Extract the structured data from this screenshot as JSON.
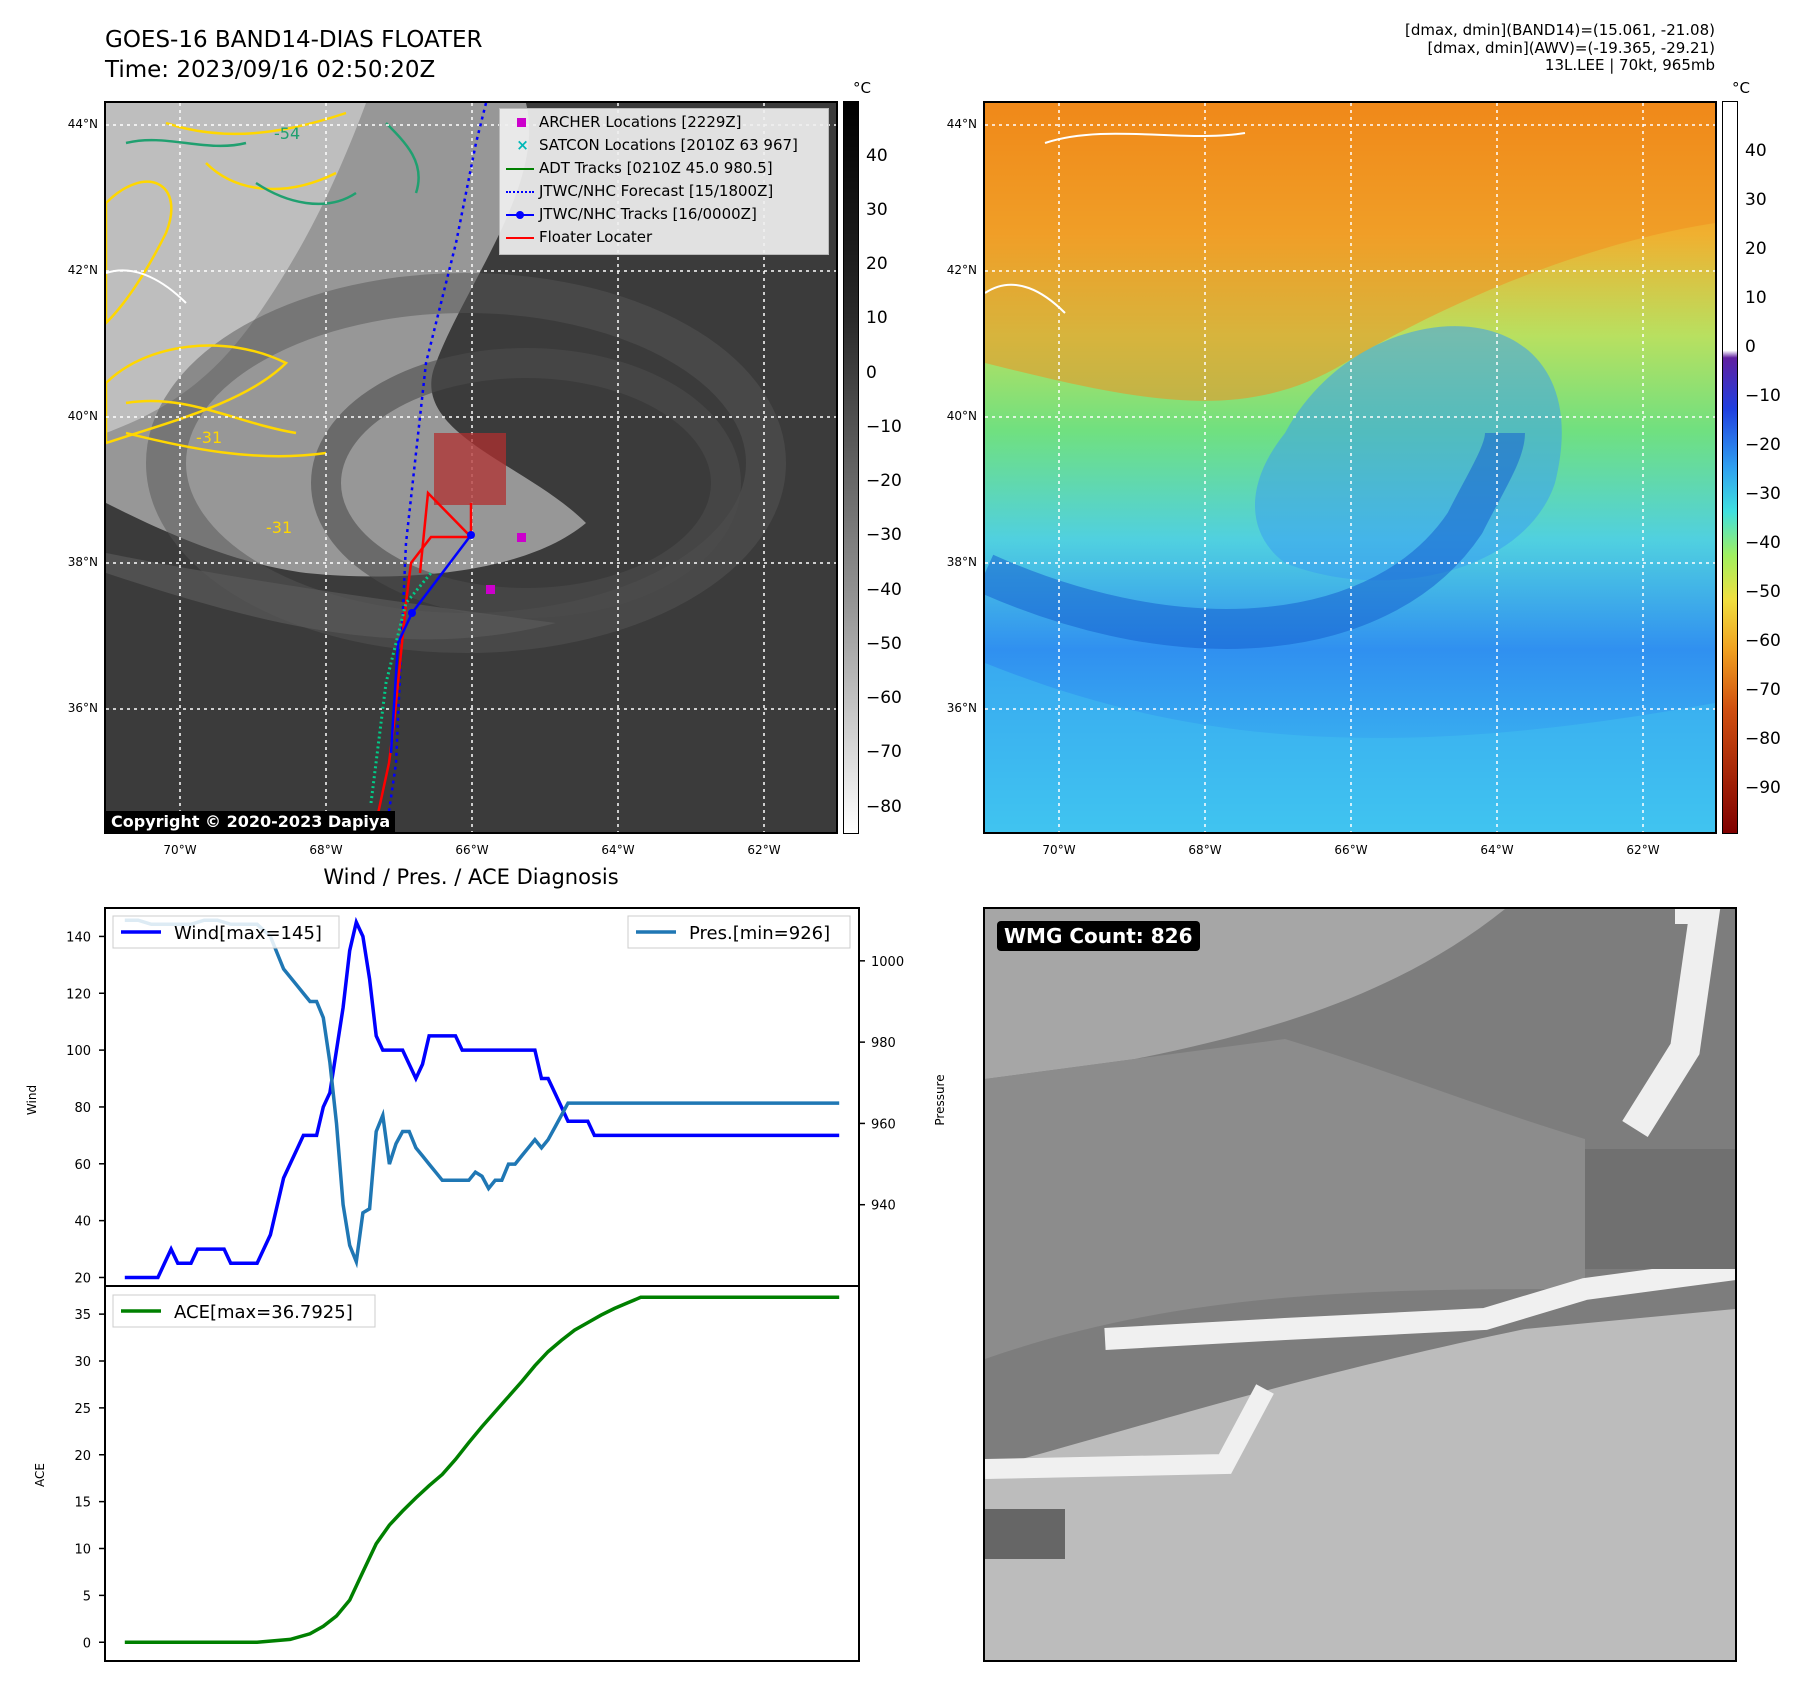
{
  "header": {
    "title_line1": "GOES-16 BAND14-DIAS FLOATER",
    "title_line2": "Time: 2023/09/16 02:50:20Z",
    "info_line1": "[dmax, dmin](BAND14)=(15.061, -21.08)",
    "info_line2": "[dmax, dmin](AWV)=(-19.365, -29.21)",
    "info_line3": "13L.LEE | 70kt, 965mb"
  },
  "map_axes": {
    "lat_labels": [
      "44°N",
      "42°N",
      "40°N",
      "38°N",
      "36°N"
    ],
    "lon_labels": [
      "70°W",
      "68°W",
      "66°W",
      "64°W",
      "62°W"
    ]
  },
  "ir_panel": {
    "colorbar_unit": "°C",
    "colorbar_ticks": [
      "40",
      "30",
      "20",
      "10",
      "0",
      "−10",
      "−20",
      "−30",
      "−40",
      "−50",
      "−60",
      "−70",
      "−80"
    ],
    "copyright": "Copyright © 2020-2023 Dapiya",
    "legend": {
      "archer": "ARCHER Locations [2229Z]",
      "satcon": "SATCON Locations [2010Z 63 967]",
      "adt": "ADT Tracks [0210Z 45.0 980.5]",
      "forecast": "JTWC/NHC Forecast [15/1800Z]",
      "tracks": "JTWC/NHC Tracks [16/0000Z]",
      "floater": "Floater Locater"
    },
    "contour_labels": [
      "-54",
      "-31",
      "-31"
    ]
  },
  "wv_panel": {
    "colorbar_unit": "°C",
    "colorbar_ticks": [
      "40",
      "30",
      "20",
      "10",
      "0",
      "−10",
      "−20",
      "−30",
      "−40",
      "−50",
      "−60",
      "−70",
      "−80",
      "−90"
    ]
  },
  "wmg_panel": {
    "label": "WMG Count: 826"
  },
  "colors": {
    "wind": "#0000ff",
    "pressure": "#1f77b4",
    "ace": "#008000",
    "tracks": "#0000ff",
    "floater": "#ff0000",
    "archer": "#cc00cc",
    "satcon": "#00b8b8"
  },
  "chart_data": [
    {
      "type": "line",
      "title": "Wind / Pres. / ACE Diagnosis",
      "ylabel": "Wind",
      "y2label": "Pressure",
      "ylim": [
        17,
        150
      ],
      "y2lim": [
        920,
        1013
      ],
      "y_ticks": [
        "140",
        "120",
        "100",
        "80",
        "60",
        "40",
        "20"
      ],
      "y2_ticks": [
        "1000",
        "980",
        "960",
        "940"
      ],
      "series": [
        {
          "name": "Wind[max=145]",
          "axis": "left",
          "x": [
            0,
            1,
            2,
            3,
            4,
            5,
            6,
            7,
            8,
            9,
            10,
            11,
            12,
            13,
            14,
            15,
            16,
            17,
            18,
            19,
            20,
            21,
            22,
            23,
            24,
            25,
            26,
            27,
            28,
            29,
            30,
            31,
            32,
            33,
            34,
            35,
            36,
            37,
            38,
            39,
            40,
            41,
            42,
            43,
            44,
            45,
            46,
            47,
            48,
            49,
            50,
            51,
            52,
            53,
            54,
            55,
            56,
            57,
            58,
            59,
            60,
            61,
            62,
            63,
            64,
            65,
            66,
            67,
            68,
            69,
            70,
            71,
            72,
            73,
            74,
            75,
            76,
            77,
            78,
            79,
            80,
            81,
            82,
            83,
            84,
            85,
            86,
            87,
            88,
            89,
            90,
            91,
            92,
            93,
            94,
            95,
            96,
            97,
            98,
            99,
            100,
            101,
            102,
            103,
            104,
            105,
            106,
            107,
            108
          ],
          "values": [
            20,
            20,
            20,
            20,
            20,
            20,
            25,
            30,
            25,
            25,
            25,
            30,
            30,
            30,
            30,
            30,
            25,
            25,
            25,
            25,
            25,
            30,
            35,
            45,
            55,
            60,
            65,
            70,
            70,
            70,
            80,
            85,
            100,
            115,
            135,
            145,
            140,
            125,
            105,
            100,
            100,
            100,
            100,
            95,
            90,
            95,
            105,
            105,
            105,
            105,
            105,
            100,
            100,
            100,
            100,
            100,
            100,
            100,
            100,
            100,
            100,
            100,
            100,
            90,
            90,
            85,
            80,
            75,
            75,
            75,
            75,
            70,
            70,
            70,
            70,
            70,
            70,
            70,
            70,
            70,
            70,
            70,
            70,
            70,
            70,
            70,
            70,
            70,
            70,
            70,
            70,
            70,
            70,
            70,
            70,
            70,
            70,
            70,
            70,
            70,
            70,
            70,
            70,
            70,
            70,
            70,
            70,
            70,
            70
          ]
        },
        {
          "name": "Pres.[min=926]",
          "axis": "right",
          "x": [
            0,
            2,
            4,
            6,
            8,
            10,
            12,
            14,
            16,
            18,
            20,
            22,
            24,
            26,
            27,
            28,
            29,
            30,
            31,
            32,
            33,
            34,
            35,
            36,
            37,
            38,
            39,
            40,
            41,
            42,
            43,
            44,
            45,
            46,
            47,
            48,
            49,
            50,
            51,
            52,
            53,
            54,
            55,
            56,
            57,
            58,
            59,
            60,
            61,
            62,
            63,
            64,
            65,
            66,
            67,
            68,
            69,
            70,
            71,
            72,
            73,
            74,
            75,
            76,
            77,
            78,
            79,
            80,
            81,
            82,
            83,
            84,
            85,
            86,
            87,
            88,
            89,
            90,
            91,
            92,
            93,
            94,
            95,
            96,
            97,
            98,
            99,
            100,
            101,
            102,
            103,
            104,
            105,
            106,
            107,
            108
          ],
          "values": [
            1010,
            1010,
            1009,
            1009,
            1009,
            1009,
            1010,
            1010,
            1009,
            1009,
            1009,
            1006,
            998,
            994,
            992,
            990,
            990,
            986,
            975,
            960,
            940,
            930,
            926,
            938,
            939,
            958,
            962,
            950,
            955,
            958,
            958,
            954,
            952,
            950,
            948,
            946,
            946,
            946,
            946,
            946,
            948,
            947,
            944,
            946,
            946,
            950,
            950,
            952,
            954,
            956,
            954,
            956,
            959,
            962,
            965,
            965,
            965,
            965,
            965,
            965,
            965,
            965,
            965,
            965,
            965,
            965,
            965,
            965,
            965,
            965,
            965,
            965,
            965,
            965,
            965,
            965,
            965,
            965,
            965,
            965,
            965,
            965,
            965,
            965,
            965,
            965,
            965,
            965,
            965,
            965,
            965,
            965,
            965,
            965,
            965,
            965
          ]
        }
      ]
    },
    {
      "type": "line",
      "ylabel": "ACE",
      "ylim": [
        -2,
        38
      ],
      "y_ticks": [
        "35",
        "30",
        "25",
        "20",
        "15",
        "10",
        "5",
        "0"
      ],
      "series": [
        {
          "name": "ACE[max=36.7925]",
          "x": [
            0,
            5,
            10,
            15,
            20,
            25,
            28,
            30,
            32,
            34,
            36,
            38,
            40,
            42,
            44,
            46,
            48,
            50,
            52,
            54,
            56,
            58,
            60,
            62,
            64,
            66,
            68,
            70,
            72,
            74,
            76,
            78,
            80,
            82,
            84,
            86,
            88,
            90,
            92,
            94,
            96,
            98,
            100,
            102,
            104,
            106,
            108
          ],
          "values": [
            0,
            0,
            0,
            0,
            0,
            0.3,
            0.9,
            1.7,
            2.8,
            4.5,
            7.5,
            10.5,
            12.5,
            14,
            15.4,
            16.7,
            17.9,
            19.5,
            21.3,
            23,
            24.6,
            26.2,
            27.8,
            29.5,
            31,
            32.2,
            33.3,
            34.1,
            34.9,
            35.6,
            36.2,
            36.8,
            36.8,
            36.8,
            36.8,
            36.8,
            36.8,
            36.8,
            36.8,
            36.8,
            36.8,
            36.8,
            36.8,
            36.8,
            36.8,
            36.8,
            36.8
          ]
        }
      ]
    }
  ]
}
